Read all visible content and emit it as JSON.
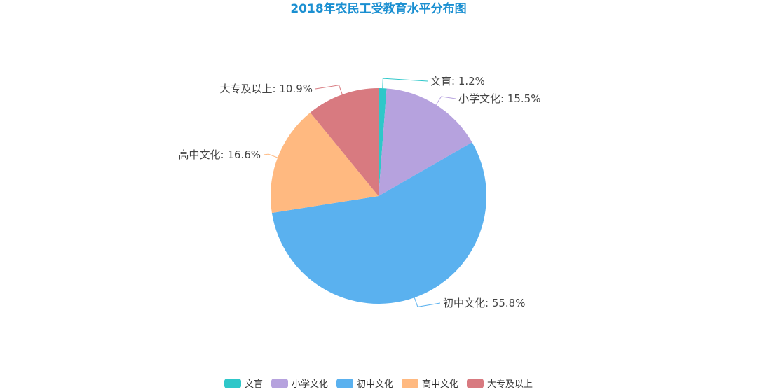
{
  "title": "2018年农民工受教育水平分布图",
  "chart_data": {
    "type": "pie",
    "title": "2018年农民工受教育水平分布图",
    "categories": [
      "文盲",
      "小学文化",
      "初中文化",
      "高中文化",
      "大专及以上"
    ],
    "values": [
      1.2,
      15.5,
      55.8,
      16.6,
      10.9
    ],
    "unit": "%",
    "colors": [
      "#2ec7c9",
      "#b6a2de",
      "#5ab1ef",
      "#ffb980",
      "#d87a80"
    ],
    "labels": [
      "文盲: 1.2%",
      "小学文化: 15.5%",
      "初中文化: 55.8%",
      "高中文化: 16.6%",
      "大专及以上: 10.9%"
    ],
    "legend_position": "bottom"
  },
  "legend": [
    {
      "label": "文盲",
      "color": "#2ec7c9"
    },
    {
      "label": "小学文化",
      "color": "#b6a2de"
    },
    {
      "label": "初中文化",
      "color": "#5ab1ef"
    },
    {
      "label": "高中文化",
      "color": "#ffb980"
    },
    {
      "label": "大专及以上",
      "color": "#d87a80"
    }
  ]
}
